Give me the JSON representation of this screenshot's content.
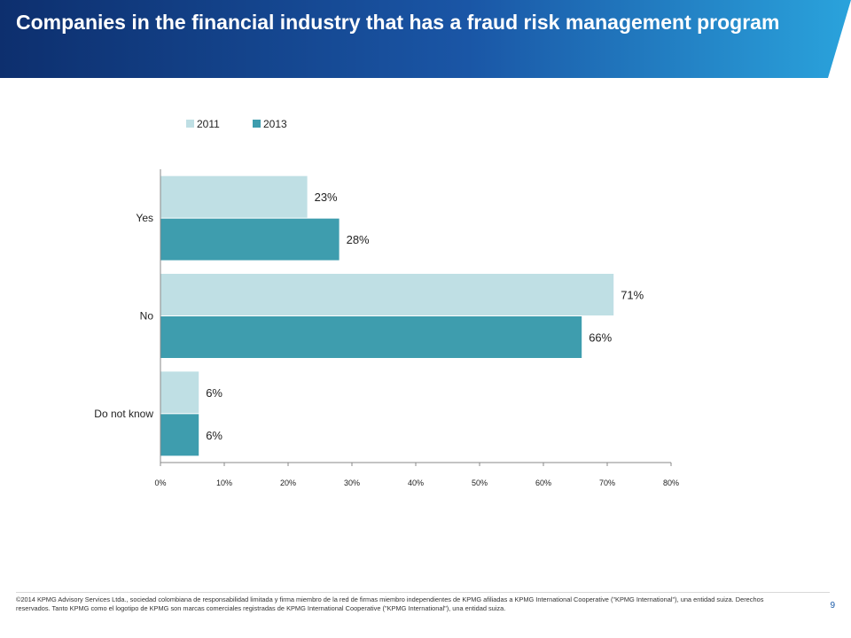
{
  "header": {
    "title": "Companies in the financial industry that has a fraud risk management program",
    "colors": {
      "start": "#0d2f6e",
      "mid": "#1a56a6",
      "end": "#2aa3dc"
    }
  },
  "chart_data": {
    "type": "bar",
    "orientation": "horizontal",
    "categories": [
      "Yes",
      "No",
      "Do not know"
    ],
    "series": [
      {
        "name": "2011",
        "values": [
          23,
          71,
          6
        ],
        "labels": [
          "23%",
          "71%",
          "6%"
        ],
        "color": "#bfdfe4"
      },
      {
        "name": "2013",
        "values": [
          28,
          66,
          6
        ],
        "labels": [
          "28%",
          "66%",
          "6%"
        ],
        "color": "#3e9dae"
      }
    ],
    "xlim": [
      0,
      80
    ],
    "xticks": [
      "0%",
      "10%",
      "20%",
      "30%",
      "40%",
      "50%",
      "60%",
      "70%",
      "80%"
    ],
    "grid": false,
    "legend_position": "top"
  },
  "footer": {
    "note": "©2014 KPMG Advisory Services Ltda., sociedad colombiana de responsabilidad limitada y firma miembro de la red de firmas miembro independientes de KPMG afiliadas a KPMG International Cooperative (\"KPMG International\"), una entidad suiza. Derechos reservados. Tanto KPMG como el logotipo de KPMG son marcas comerciales registradas de KPMG International Cooperative (\"KPMG International\"), una entidad suiza.",
    "page_number": "9"
  }
}
